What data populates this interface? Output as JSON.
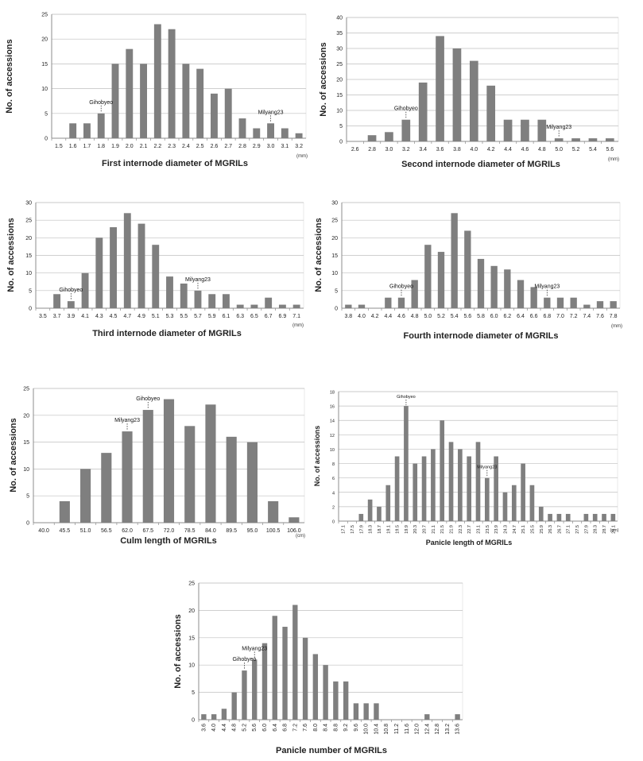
{
  "colors": {
    "bar": "#7f7f7f",
    "grid": "#bfbfbf",
    "axis": "#8c8c8c",
    "text": "#222222"
  },
  "chart_data": [
    {
      "type": "bar",
      "categories": [
        "1.5",
        "1.6",
        "1.7",
        "1.8",
        "1.9",
        "2.0",
        "2.1",
        "2.2",
        "2.3",
        "2.4",
        "2.5",
        "2.6",
        "2.7",
        "2.8",
        "2.9",
        "3.0",
        "3.1",
        "3.2"
      ],
      "values": [
        0,
        3,
        3,
        5,
        15,
        18,
        15,
        23,
        22,
        15,
        14,
        9,
        10,
        4,
        2,
        3,
        2,
        1
      ],
      "xlabel": "First internode diameter of MGRILs",
      "ylabel": "No. of accessions",
      "unit": "(mm)",
      "ylim": [
        0,
        25
      ],
      "ystep": 5,
      "annotations": [
        {
          "text": "Gihobyeo",
          "category": "1.8"
        },
        {
          "text": "Milyang23",
          "category": "3.0"
        }
      ]
    },
    {
      "type": "bar",
      "categories": [
        "2.6",
        "2.8",
        "3.0",
        "3.2",
        "3.4",
        "3.6",
        "3.8",
        "4.0",
        "4.2",
        "4.4",
        "4.6",
        "4.8",
        "5.0",
        "5.2",
        "5.4",
        "5.6"
      ],
      "values": [
        0,
        2,
        3,
        7,
        19,
        34,
        30,
        26,
        18,
        7,
        7,
        7,
        1,
        1,
        1,
        1
      ],
      "xlabel": "Second internode diameter of MGRILs",
      "ylabel": "No. of accessions",
      "unit": "(mm)",
      "ylim": [
        0,
        40
      ],
      "ystep": 5,
      "annotations": [
        {
          "text": "Gihobyeo",
          "category": "3.2"
        },
        {
          "text": "Milyang23",
          "category": "5.0"
        }
      ]
    },
    {
      "type": "bar",
      "categories": [
        "3.5",
        "3.7",
        "3.9",
        "4.1",
        "4.3",
        "4.5",
        "4.7",
        "4.9",
        "5.1",
        "5.3",
        "5.5",
        "5.7",
        "5.9",
        "6.1",
        "6.3",
        "6.5",
        "6.7",
        "6.9",
        "7.1"
      ],
      "values": [
        0,
        4,
        2,
        10,
        20,
        23,
        27,
        24,
        18,
        9,
        7,
        5,
        4,
        4,
        1,
        1,
        3,
        1,
        1
      ],
      "xlabel": "Third internode diameter of MGRILs",
      "ylabel": "No. of accessions",
      "unit": "(mm)",
      "ylim": [
        0,
        30
      ],
      "ystep": 5,
      "annotations": [
        {
          "text": "Gihobyeo",
          "category": "3.9"
        },
        {
          "text": "Milyang23",
          "category": "5.7"
        }
      ]
    },
    {
      "type": "bar",
      "categories": [
        "3.8",
        "4.0",
        "4.2",
        "4.4",
        "4.6",
        "4.8",
        "5.0",
        "5.2",
        "5.4",
        "5.6",
        "5.8",
        "6.0",
        "6.2",
        "6.4",
        "6.6",
        "6.8",
        "7.0",
        "7.2",
        "7.4",
        "7.6",
        "7.8"
      ],
      "values": [
        1,
        1,
        0,
        3,
        3,
        8,
        18,
        16,
        27,
        22,
        14,
        12,
        11,
        8,
        6,
        3,
        3,
        3,
        1,
        2,
        2
      ],
      "xlabel": "Fourth internode diameter of MGRILs",
      "ylabel": "No. of accessions",
      "unit": "(mm)",
      "ylim": [
        0,
        30
      ],
      "ystep": 5,
      "annotations": [
        {
          "text": "Gihobyeo",
          "category": "4.6"
        },
        {
          "text": "Milyang23",
          "category": "6.8"
        }
      ]
    },
    {
      "type": "bar",
      "categories": [
        "40.0",
        "45.5",
        "51.0",
        "56.5",
        "62.0",
        "67.5",
        "72.0",
        "78.5",
        "84.0",
        "89.5",
        "95.0",
        "100.5",
        "106.0"
      ],
      "values": [
        0,
        4,
        10,
        13,
        17,
        21,
        23,
        18,
        22,
        16,
        15,
        4,
        1
      ],
      "xlabel": "Culm length of MGRILs",
      "ylabel": "No. of accessions",
      "unit": "(cm)",
      "ylim": [
        0,
        25
      ],
      "ystep": 5,
      "annotations": [
        {
          "text": "Milyang23",
          "category": "62.0"
        },
        {
          "text": "Gihobyeo",
          "category": "67.5"
        }
      ]
    },
    {
      "type": "bar",
      "categories": [
        "17.1",
        "17.5",
        "17.9",
        "18.3",
        "18.7",
        "19.1",
        "19.5",
        "19.9",
        "20.3",
        "20.7",
        "21.1",
        "21.5",
        "21.9",
        "22.3",
        "22.7",
        "23.1",
        "23.5",
        "23.9",
        "24.3",
        "24.7",
        "25.1",
        "25.5",
        "25.9",
        "26.3",
        "26.7",
        "27.1",
        "27.5",
        "27.9",
        "28.3",
        "28.7",
        "29.1"
      ],
      "values": [
        0,
        0,
        1,
        3,
        2,
        5,
        9,
        16,
        8,
        9,
        10,
        14,
        11,
        10,
        9,
        11,
        6,
        9,
        4,
        5,
        8,
        5,
        2,
        1,
        1,
        1,
        0,
        1,
        1,
        1,
        1
      ],
      "xlabel": "Panicle length of MGRILs",
      "ylabel": "No. of accessions",
      "unit": "(cm)",
      "ylim": [
        0,
        18
      ],
      "ystep": 2,
      "annotations": [
        {
          "text": "Gihobyeo",
          "category": "19.9"
        },
        {
          "text": "Milyang23",
          "category": "23.5"
        }
      ]
    },
    {
      "type": "bar",
      "categories": [
        "3.6",
        "4.0",
        "4.4",
        "4.8",
        "5.2",
        "5.6",
        "6.0",
        "6.4",
        "6.8",
        "7.2",
        "7.6",
        "8.0",
        "8.4",
        "8.8",
        "9.2",
        "9.6",
        "10.0",
        "10.4",
        "10.8",
        "11.2",
        "11.6",
        "12.0",
        "12.4",
        "12.8",
        "13.2",
        "13.6"
      ],
      "values": [
        1,
        1,
        2,
        5,
        9,
        11,
        14,
        19,
        17,
        21,
        15,
        12,
        10,
        7,
        7,
        3,
        3,
        3,
        0,
        0,
        0,
        0,
        1,
        0,
        0,
        1
      ],
      "xlabel": "Panicle number of MGRILs",
      "ylabel": "No. of accessions",
      "unit": "",
      "ylim": [
        0,
        25
      ],
      "ystep": 5,
      "annotations": [
        {
          "text": "Gihobyeo",
          "category": "5.2"
        },
        {
          "text": "Milyang23",
          "category": "5.6"
        }
      ]
    }
  ]
}
